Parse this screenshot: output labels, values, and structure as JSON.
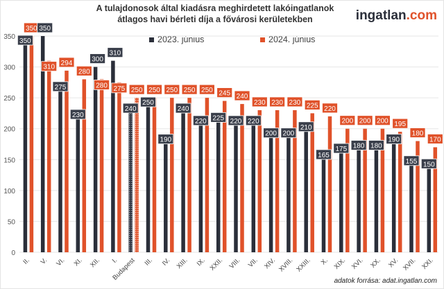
{
  "chart_data": {
    "type": "bar",
    "title": "A tulajdonosok által kiadásra meghirdetett lakóingatlanok átlagos havi bérleti díja a fővárosi kerületekben",
    "categories": [
      "II.",
      "V.",
      "VI.",
      "XI.",
      "XII.",
      "I.",
      "Budapest",
      "III.",
      "IV.",
      "XIII.",
      "IX.",
      "XXII.",
      "VIII.",
      "VII.",
      "XIV.",
      "XVIII.",
      "XXIII.",
      "X.",
      "XIX.",
      "XVI.",
      "XX.",
      "XV.",
      "XVII.",
      "XXI."
    ],
    "series": [
      {
        "name": "2023. június",
        "color": "#2b2f3a",
        "values": [
          350,
          350,
          275,
          230,
          300,
          310,
          240,
          250,
          190,
          240,
          220,
          225,
          220,
          220,
          200,
          200,
          210,
          165,
          175,
          180,
          180,
          190,
          155,
          150
        ]
      },
      {
        "name": "2024. június",
        "color": "#e0522a",
        "values": [
          350,
          310,
          294,
          280,
          280,
          275,
          250,
          250,
          250,
          250,
          250,
          245,
          240,
          230,
          230,
          230,
          225,
          220,
          200,
          200,
          200,
          195,
          180,
          170
        ]
      }
    ],
    "highlighted_category": "Budapest",
    "yticks": [
      0,
      50,
      100,
      150,
      200,
      250,
      300,
      350
    ],
    "ylim": [
      0,
      360
    ],
    "grid": true,
    "legend_position": "top"
  },
  "logo": {
    "main": "ingatlan",
    "suffix": ".com"
  },
  "source": "adatok forrása: adat.ingatlan.com"
}
